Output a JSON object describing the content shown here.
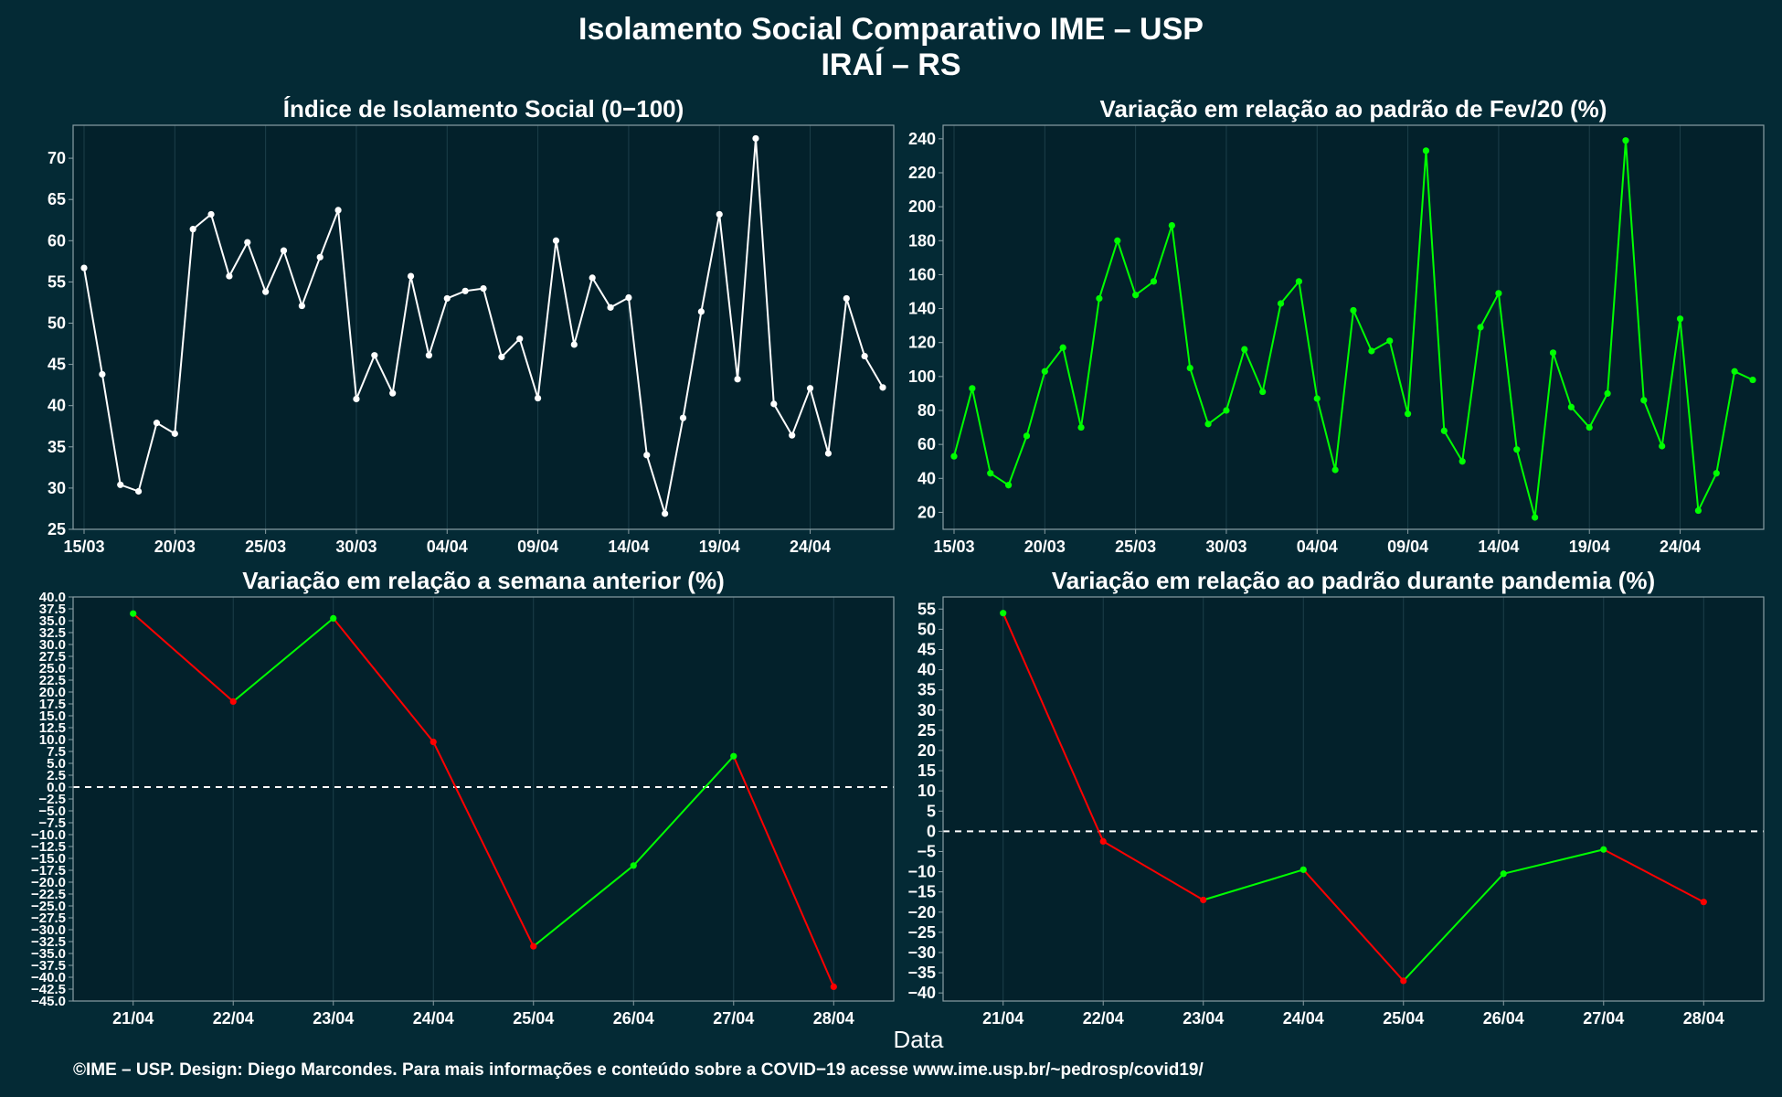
{
  "title": "Isolamento Social Comparativo IME – USP",
  "subtitle": "IRAÍ – RS",
  "xlabel": "Data",
  "caption": "©IME – USP. Design: Diego Marcondes. Para mais informações e conteúdo sobre a COVID−19 acesse www.ime.usp.br/~pedrosp/covid19/",
  "colors": {
    "background": "#042a35",
    "panel": "#03212b",
    "grid": "#1d3f4a",
    "white": "#ffffff",
    "green": "#00ff00",
    "red": "#ff0000",
    "frame": "#8a9ea4"
  },
  "chart_data": [
    {
      "type": "line",
      "title": "Índice de Isolamento Social (0−100)",
      "x_dates": [
        "15/03",
        "16/03",
        "17/03",
        "18/03",
        "19/03",
        "20/03",
        "21/03",
        "22/03",
        "23/03",
        "24/03",
        "25/03",
        "26/03",
        "27/03",
        "28/03",
        "29/03",
        "30/03",
        "31/03",
        "01/04",
        "02/04",
        "03/04",
        "04/04",
        "05/04",
        "06/04",
        "07/04",
        "08/04",
        "09/04",
        "10/04",
        "11/04",
        "12/04",
        "13/04",
        "14/04",
        "15/04",
        "16/04",
        "17/04",
        "18/04",
        "19/04",
        "20/04",
        "21/04",
        "22/04",
        "23/04",
        "24/04",
        "25/04",
        "26/04",
        "27/04",
        "28/04"
      ],
      "values": [
        56.7,
        43.8,
        30.4,
        29.6,
        37.9,
        36.6,
        61.4,
        63.2,
        55.7,
        59.8,
        53.8,
        58.8,
        52.1,
        58.0,
        63.7,
        40.8,
        46.1,
        41.5,
        55.7,
        46.1,
        53.0,
        53.9,
        54.2,
        45.9,
        48.1,
        40.9,
        60.0,
        47.4,
        55.5,
        51.9,
        53.1,
        34.0,
        26.9,
        38.5,
        51.4,
        63.2,
        43.2,
        72.4,
        40.2,
        36.4,
        42.1,
        34.2,
        53.0,
        46.0,
        42.2
      ],
      "tick_labels": [
        "15/03",
        "20/03",
        "25/03",
        "30/03",
        "04/04",
        "09/04",
        "14/04",
        "19/04",
        "24/04"
      ],
      "ylim": [
        25,
        74
      ],
      "yticks": [
        25,
        30,
        35,
        40,
        45,
        50,
        55,
        60,
        65,
        70
      ],
      "color": "#ffffff"
    },
    {
      "type": "line",
      "title": "Variação em relação ao padrão de Fev/20 (%)",
      "x_dates": [
        "15/03",
        "16/03",
        "17/03",
        "18/03",
        "19/03",
        "20/03",
        "21/03",
        "22/03",
        "23/03",
        "24/03",
        "25/03",
        "26/03",
        "27/03",
        "28/03",
        "29/03",
        "30/03",
        "31/03",
        "01/04",
        "02/04",
        "03/04",
        "04/04",
        "05/04",
        "06/04",
        "07/04",
        "08/04",
        "09/04",
        "10/04",
        "11/04",
        "12/04",
        "13/04",
        "14/04",
        "15/04",
        "16/04",
        "17/04",
        "18/04",
        "19/04",
        "20/04",
        "21/04",
        "22/04",
        "23/04",
        "24/04",
        "25/04",
        "26/04",
        "27/04",
        "28/04"
      ],
      "values": [
        53,
        93,
        43,
        36,
        65,
        103,
        117,
        70,
        146,
        180,
        148,
        156,
        189,
        105,
        72,
        80,
        116,
        91,
        143,
        156,
        87,
        45,
        139,
        115,
        121,
        78,
        233,
        68,
        50,
        129,
        149,
        57,
        17,
        114,
        82,
        70,
        90,
        239,
        86,
        59,
        134,
        21,
        43,
        103,
        98
      ],
      "tick_labels": [
        "15/03",
        "20/03",
        "25/03",
        "30/03",
        "04/04",
        "09/04",
        "14/04",
        "19/04",
        "24/04"
      ],
      "ylim": [
        10,
        248
      ],
      "yticks": [
        20,
        40,
        60,
        80,
        100,
        120,
        140,
        160,
        180,
        200,
        220,
        240
      ],
      "color": "#00ff00"
    },
    {
      "type": "line",
      "title": "Variação em relação a semana anterior (%)",
      "categories": [
        "21/04",
        "22/04",
        "23/04",
        "24/04",
        "25/04",
        "26/04",
        "27/04",
        "28/04"
      ],
      "values": [
        36.5,
        18.0,
        35.5,
        9.5,
        -33.5,
        -16.5,
        6.5,
        -42.0
      ],
      "ylim": [
        -45,
        40
      ],
      "yticks": [
        -45.0,
        -42.5,
        -40.0,
        -37.5,
        -35.0,
        -32.5,
        -30.0,
        -27.5,
        -25.0,
        -22.5,
        -20.0,
        -17.5,
        -15.0,
        -12.5,
        -10.0,
        -7.5,
        -5.0,
        -2.5,
        0.0,
        2.5,
        5.0,
        7.5,
        10.0,
        12.5,
        15.0,
        17.5,
        20.0,
        22.5,
        25.0,
        27.5,
        30.0,
        32.5,
        35.0,
        37.5,
        40.0
      ],
      "positive_color": "#00ff00",
      "negative_color": "#ff0000",
      "reference_line": 0
    },
    {
      "type": "line",
      "title": "Variação em relação ao padrão durante pandemia (%)",
      "categories": [
        "21/04",
        "22/04",
        "23/04",
        "24/04",
        "25/04",
        "26/04",
        "27/04",
        "28/04"
      ],
      "values": [
        54,
        -2.5,
        -17,
        -9.5,
        -37,
        -10.5,
        -4.5,
        -17.5
      ],
      "ylim": [
        -42,
        58
      ],
      "yticks": [
        -40,
        -35,
        -30,
        -25,
        -20,
        -15,
        -10,
        -5,
        0,
        5,
        10,
        15,
        20,
        25,
        30,
        35,
        40,
        45,
        50,
        55
      ],
      "positive_color": "#00ff00",
      "negative_color": "#ff0000",
      "reference_line": 0
    }
  ]
}
